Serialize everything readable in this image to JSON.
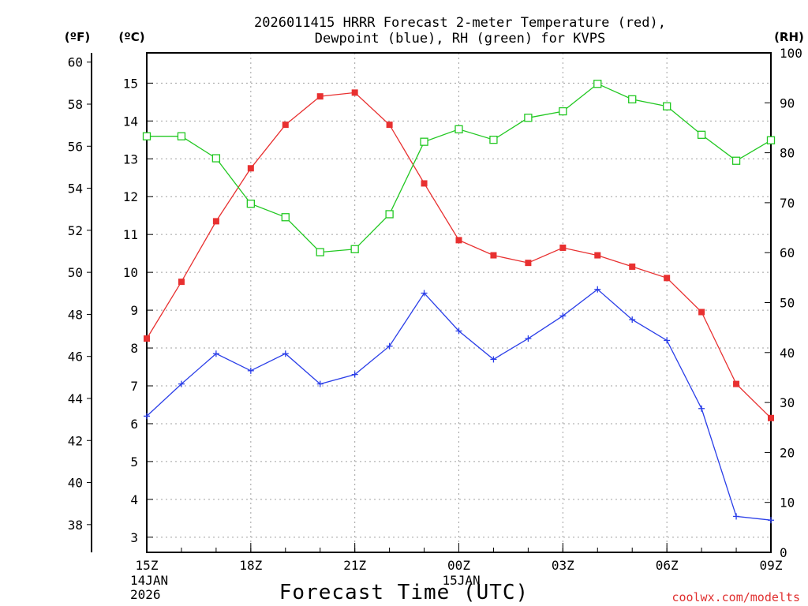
{
  "chart_data": {
    "type": "line",
    "title": [
      "2026011415 HRRR Forecast 2-meter Temperature (red),",
      "Dewpoint (blue), RH (green) for KVPS"
    ],
    "xlabel": "Forecast Time (UTC)",
    "left_axis_f_label": "(ºF)",
    "left_axis_c_label": "(ºC)",
    "right_axis_label": "(RH)",
    "credit": "coolwx.com/modelts",
    "x_hours": [
      0,
      1,
      2,
      3,
      4,
      5,
      6,
      7,
      8,
      9,
      10,
      11,
      12,
      13,
      14,
      15,
      16,
      17,
      18
    ],
    "x_ticks": [
      {
        "hour": 0,
        "label": "15Z",
        "sub": [
          "14JAN",
          "2026"
        ]
      },
      {
        "hour": 3,
        "label": "18Z",
        "sub": []
      },
      {
        "hour": 6,
        "label": "21Z",
        "sub": []
      },
      {
        "hour": 9,
        "label": "00Z",
        "sub": [
          "15JAN"
        ]
      },
      {
        "hour": 12,
        "label": "03Z",
        "sub": []
      },
      {
        "hour": 15,
        "label": "06Z",
        "sub": []
      },
      {
        "hour": 18,
        "label": "09Z",
        "sub": []
      }
    ],
    "celsius_ticks": [
      "3",
      "4",
      "5",
      "6",
      "7",
      "8",
      "9",
      "10",
      "11",
      "12",
      "13",
      "14",
      "15"
    ],
    "fahrenheit_ticks": [
      "38",
      "40",
      "42",
      "44",
      "46",
      "48",
      "50",
      "52",
      "54",
      "56",
      "58",
      "60"
    ],
    "rh_ticks": [
      "0",
      "10",
      "20",
      "30",
      "40",
      "50",
      "60",
      "70",
      "80",
      "90",
      "100"
    ],
    "ylim_c": [
      2.6,
      15.8
    ],
    "ylim_rh": [
      0,
      100
    ],
    "series": [
      {
        "name": "Temperature",
        "units": "C",
        "color": "#e83030",
        "marker": "filled-square",
        "values": [
          8.25,
          9.75,
          11.35,
          12.75,
          13.9,
          14.65,
          14.75,
          13.9,
          12.35,
          10.85,
          10.45,
          10.25,
          10.65,
          10.45,
          10.15,
          9.85,
          8.95,
          7.05,
          6.15
        ]
      },
      {
        "name": "Dewpoint",
        "units": "C",
        "color": "#2a3ee8",
        "marker": "plus",
        "values": [
          6.2,
          7.05,
          7.85,
          7.4,
          7.85,
          7.05,
          7.3,
          8.05,
          9.45,
          8.45,
          7.7,
          8.25,
          8.85,
          9.55,
          8.75,
          8.2,
          6.4,
          3.55,
          3.45
        ]
      },
      {
        "name": "RH",
        "units": "%",
        "color": "#22c822",
        "marker": "open-square",
        "values": [
          83.3,
          83.3,
          78.9,
          69.8,
          67.1,
          60.1,
          60.7,
          67.7,
          82.2,
          84.7,
          82.6,
          87.0,
          88.3,
          93.8,
          90.7,
          89.3,
          83.6,
          78.4,
          82.5
        ]
      }
    ]
  }
}
